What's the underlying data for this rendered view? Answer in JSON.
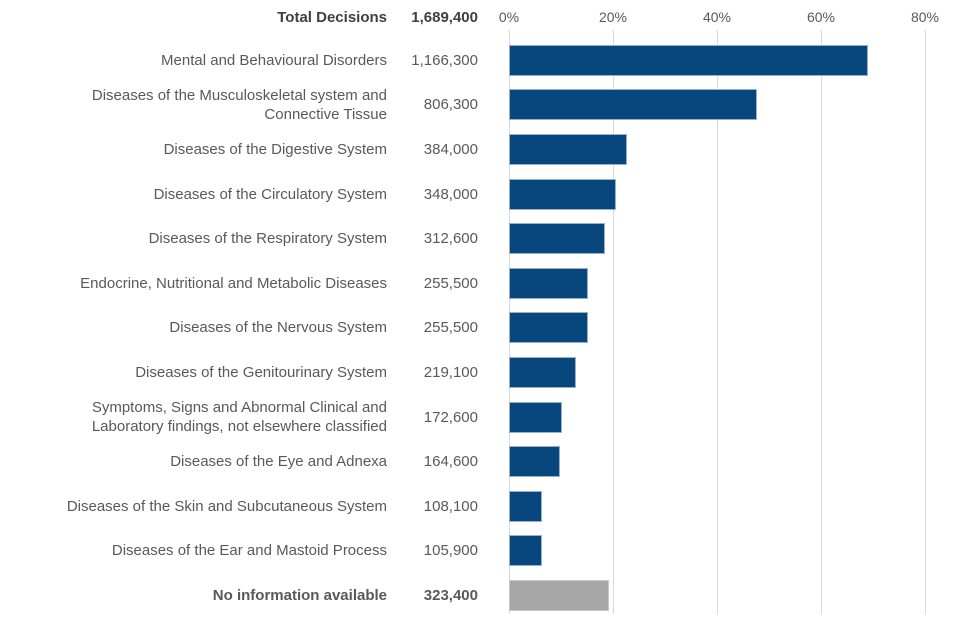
{
  "chart_data": {
    "type": "bar",
    "orientation": "horizontal",
    "title": "Total Decisions",
    "header": {
      "label": "Total Decisions",
      "value_label": "1,689,400",
      "value": 1689400
    },
    "axis": {
      "ticks": [
        "0%",
        "20%",
        "40%",
        "60%",
        "80%"
      ],
      "min": 0,
      "max": 80,
      "unit": "%",
      "gridlines": true
    },
    "colors": {
      "bar": "#07477d",
      "bar_border": "#9aafc9",
      "no_info_bar": "#a6a6a6",
      "no_info_bar_border": "#c9c9c9",
      "gridline": "#d9d9d9",
      "text": "#595959",
      "text_bold": "#3f3f3f"
    },
    "rows": [
      {
        "label": "Mental and Behavioural Disorders",
        "value": 1166300,
        "value_label": "1,166,300"
      },
      {
        "label": "Diseases of the Musculoskeletal system and\nConnective Tissue",
        "value": 806300,
        "value_label": "806,300"
      },
      {
        "label": "Diseases of the Digestive System",
        "value": 384000,
        "value_label": "384,000"
      },
      {
        "label": "Diseases of the Circulatory System",
        "value": 348000,
        "value_label": "348,000"
      },
      {
        "label": "Diseases of the Respiratory System",
        "value": 312600,
        "value_label": "312,600"
      },
      {
        "label": "Endocrine, Nutritional and Metabolic Diseases",
        "value": 255500,
        "value_label": "255,500"
      },
      {
        "label": "Diseases of the Nervous System",
        "value": 255500,
        "value_label": "255,500"
      },
      {
        "label": "Diseases of the Genitourinary System",
        "value": 219100,
        "value_label": "219,100"
      },
      {
        "label": "Symptoms, Signs and Abnormal Clinical and\nLaboratory findings, not elsewhere classified",
        "value": 172600,
        "value_label": "172,600"
      },
      {
        "label": "Diseases of the Eye and Adnexa",
        "value": 164600,
        "value_label": "164,600"
      },
      {
        "label": "Diseases of the Skin and Subcutaneous System",
        "value": 108100,
        "value_label": "108,100"
      },
      {
        "label": "Diseases of the Ear and Mastoid Process",
        "value": 105900,
        "value_label": "105,900"
      },
      {
        "label": "No information available",
        "value": 323400,
        "value_label": "323,400",
        "no_information": true,
        "emphasis": true
      }
    ]
  }
}
